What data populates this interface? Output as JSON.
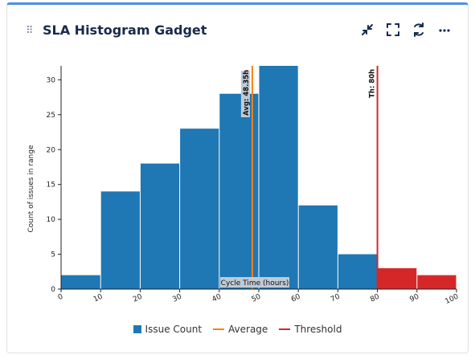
{
  "gadget": {
    "title": "SLA Histogram Gadget",
    "drag_handle": "⠿",
    "actions": [
      {
        "name": "minimize-icon"
      },
      {
        "name": "fullscreen-icon"
      },
      {
        "name": "refresh-icon"
      },
      {
        "name": "more-icon"
      }
    ]
  },
  "colors": {
    "bar": "#1f77b4",
    "bar_over": "#d62728",
    "average": "#ff7f0e",
    "threshold": "#d62728"
  },
  "chart_data": {
    "type": "bar",
    "xlabel": "Cycle Time (hours)",
    "ylabel": "Count of issues in range",
    "xlim": [
      0,
      100
    ],
    "ylim": [
      0,
      32
    ],
    "x_ticks": [
      0,
      10,
      20,
      30,
      40,
      50,
      60,
      70,
      80,
      90,
      100
    ],
    "y_ticks": [
      0,
      5,
      10,
      15,
      20,
      25,
      30
    ],
    "bins": [
      {
        "start": 0,
        "end": 10,
        "value": 2
      },
      {
        "start": 10,
        "end": 20,
        "value": 14
      },
      {
        "start": 20,
        "end": 30,
        "value": 18
      },
      {
        "start": 30,
        "end": 40,
        "value": 23
      },
      {
        "start": 40,
        "end": 50,
        "value": 28
      },
      {
        "start": 50,
        "end": 60,
        "value": 32
      },
      {
        "start": 60,
        "end": 70,
        "value": 12
      },
      {
        "start": 70,
        "end": 80,
        "value": 5
      },
      {
        "start": 80,
        "end": 90,
        "value": 3
      },
      {
        "start": 90,
        "end": 100,
        "value": 2
      }
    ],
    "average": {
      "value": 48.35,
      "label": "Avg: 48.35h"
    },
    "threshold": {
      "value": 80,
      "label": "Th: 80h"
    },
    "legend": [
      {
        "label": "Issue Count",
        "kind": "box",
        "color": "#1f77b4"
      },
      {
        "label": "Average",
        "kind": "line",
        "color": "#ff7f0e"
      },
      {
        "label": "Threshold",
        "kind": "line",
        "color": "#d62728"
      }
    ]
  }
}
